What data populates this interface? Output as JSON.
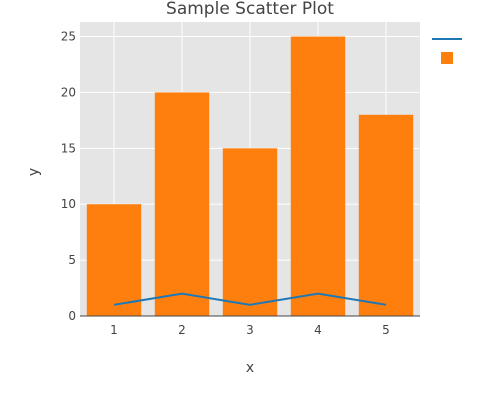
{
  "chart_data": {
    "type": "bar",
    "title": "Sample Scatter Plot",
    "xlabel": "x",
    "ylabel": "y",
    "x": [
      1,
      2,
      3,
      4,
      5
    ],
    "xlim": [
      0.5,
      5.5
    ],
    "ylim": [
      0,
      26.3
    ],
    "xticks": [
      1,
      2,
      3,
      4,
      5
    ],
    "yticks": [
      0,
      5,
      10,
      15,
      20,
      25
    ],
    "grid": true,
    "legend_position": "top-right",
    "series": [
      {
        "type": "bar",
        "values": [
          10,
          20,
          15,
          25,
          18
        ],
        "color": "#ff7f0e"
      },
      {
        "type": "line",
        "values": [
          1,
          2,
          1,
          2,
          1
        ],
        "color": "#1f77b4"
      }
    ],
    "colors": {
      "plot_background": "#e5e5e5",
      "grid": "#ffffff",
      "text": "#444444"
    }
  }
}
